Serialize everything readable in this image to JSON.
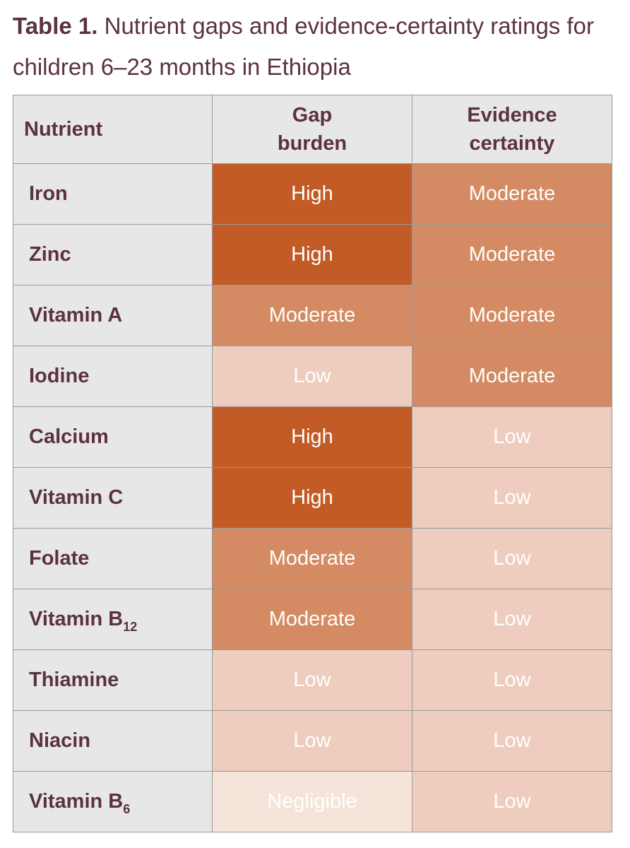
{
  "caption": {
    "lead": "Table 1.",
    "text": "Nutrient gaps and evidence-certainty ratings for children 6–23 months in Ethiopia"
  },
  "headers": {
    "nutrient": "Nutrient",
    "gap_line1": "Gap",
    "gap_line2": "burden",
    "evidence_line1": "Evidence",
    "evidence_line2": "certainty"
  },
  "level_colors": {
    "High": "#c35b26",
    "Moderate": "#d48a62",
    "Low": "#eecdbf",
    "Negligible": "#f4e4da"
  },
  "rows": [
    {
      "nutrient": "Iron",
      "sub": "",
      "gap": "High",
      "evidence": "Moderate"
    },
    {
      "nutrient": "Zinc",
      "sub": "",
      "gap": "High",
      "evidence": "Moderate"
    },
    {
      "nutrient": "Vitamin A",
      "sub": "",
      "gap": "Moderate",
      "evidence": "Moderate"
    },
    {
      "nutrient": "Iodine",
      "sub": "",
      "gap": "Low",
      "evidence": "Moderate"
    },
    {
      "nutrient": "Calcium",
      "sub": "",
      "gap": "High",
      "evidence": "Low"
    },
    {
      "nutrient": "Vitamin C",
      "sub": "",
      "gap": "High",
      "evidence": "Low"
    },
    {
      "nutrient": "Folate",
      "sub": "",
      "gap": "Moderate",
      "evidence": "Low"
    },
    {
      "nutrient": "Vitamin B",
      "sub": "12",
      "gap": "Moderate",
      "evidence": "Low"
    },
    {
      "nutrient": "Thiamine",
      "sub": "",
      "gap": "Low",
      "evidence": "Low"
    },
    {
      "nutrient": "Niacin",
      "sub": "",
      "gap": "Low",
      "evidence": "Low"
    },
    {
      "nutrient": "Vitamin B",
      "sub": "6",
      "gap": "Negligible",
      "evidence": "Low"
    }
  ]
}
